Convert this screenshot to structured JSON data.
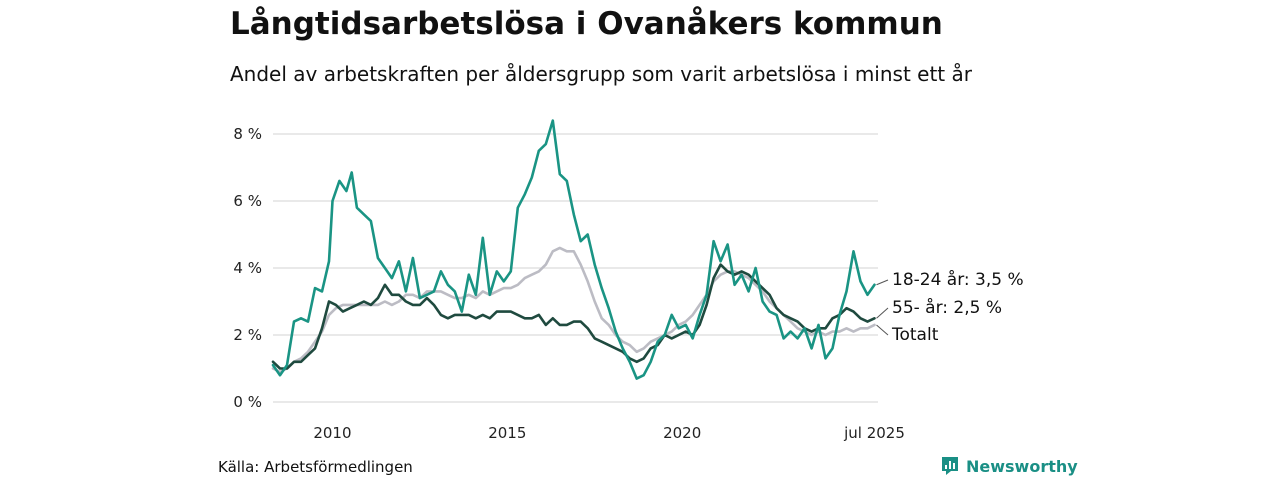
{
  "header": {
    "title": "Långtidsarbetslösa i Ovanåkers kommun",
    "subtitle": "Andel av arbetskraften per åldersgrupp som varit arbetslösa i minst ett år"
  },
  "footer": {
    "source": "Källa: Arbetsförmedlingen",
    "brand": "Newsworthy"
  },
  "colors": {
    "series_18_24": "#1a9484",
    "series_55": "#1f4a3f",
    "series_total": "#bcbcc4",
    "grid": "#dcdcdc",
    "brand": "#1a8f85"
  },
  "icons": {
    "brand_logo": "bar-chart-speech-bubble-icon"
  },
  "chart_data": {
    "type": "line",
    "xlim": [
      2008.3,
      2025.6
    ],
    "ylim": [
      0,
      8
    ],
    "y_ticks": [
      0,
      2,
      4,
      6,
      8
    ],
    "y_tick_labels": [
      "0 %",
      "2 %",
      "4 %",
      "6 %",
      "8 %"
    ],
    "x_ticks": [
      2010,
      2015,
      2020,
      2025.5
    ],
    "x_tick_labels": [
      "2010",
      "2015",
      "2020",
      "jul 2025"
    ],
    "grid": true,
    "legend": "direct labels at line ends (right)",
    "series": [
      {
        "name": "18-24 år",
        "end_label": "18-24 år: 3,5 %",
        "color": "#1a9484",
        "points": [
          [
            2008.3,
            1.1
          ],
          [
            2008.5,
            0.8
          ],
          [
            2008.7,
            1.1
          ],
          [
            2008.9,
            2.4
          ],
          [
            2009.1,
            2.5
          ],
          [
            2009.3,
            2.4
          ],
          [
            2009.5,
            3.4
          ],
          [
            2009.7,
            3.3
          ],
          [
            2009.9,
            4.2
          ],
          [
            2010.0,
            6.0
          ],
          [
            2010.2,
            6.6
          ],
          [
            2010.4,
            6.3
          ],
          [
            2010.55,
            6.85
          ],
          [
            2010.7,
            5.8
          ],
          [
            2010.9,
            5.6
          ],
          [
            2011.1,
            5.4
          ],
          [
            2011.3,
            4.3
          ],
          [
            2011.5,
            4.0
          ],
          [
            2011.7,
            3.7
          ],
          [
            2011.9,
            4.2
          ],
          [
            2012.1,
            3.3
          ],
          [
            2012.3,
            4.3
          ],
          [
            2012.5,
            3.1
          ],
          [
            2012.7,
            3.2
          ],
          [
            2012.9,
            3.3
          ],
          [
            2013.1,
            3.9
          ],
          [
            2013.3,
            3.5
          ],
          [
            2013.5,
            3.3
          ],
          [
            2013.7,
            2.7
          ],
          [
            2013.9,
            3.8
          ],
          [
            2014.1,
            3.2
          ],
          [
            2014.3,
            4.9
          ],
          [
            2014.5,
            3.2
          ],
          [
            2014.7,
            3.9
          ],
          [
            2014.9,
            3.6
          ],
          [
            2015.1,
            3.9
          ],
          [
            2015.3,
            5.8
          ],
          [
            2015.5,
            6.2
          ],
          [
            2015.7,
            6.7
          ],
          [
            2015.9,
            7.5
          ],
          [
            2016.1,
            7.7
          ],
          [
            2016.3,
            8.4
          ],
          [
            2016.5,
            6.8
          ],
          [
            2016.7,
            6.6
          ],
          [
            2016.9,
            5.6
          ],
          [
            2017.1,
            4.8
          ],
          [
            2017.3,
            5.0
          ],
          [
            2017.5,
            4.1
          ],
          [
            2017.7,
            3.4
          ],
          [
            2017.9,
            2.8
          ],
          [
            2018.1,
            2.1
          ],
          [
            2018.3,
            1.6
          ],
          [
            2018.5,
            1.2
          ],
          [
            2018.7,
            0.7
          ],
          [
            2018.9,
            0.8
          ],
          [
            2019.1,
            1.2
          ],
          [
            2019.3,
            1.8
          ],
          [
            2019.5,
            2.0
          ],
          [
            2019.7,
            2.6
          ],
          [
            2019.9,
            2.2
          ],
          [
            2020.1,
            2.3
          ],
          [
            2020.3,
            1.9
          ],
          [
            2020.5,
            2.6
          ],
          [
            2020.7,
            3.2
          ],
          [
            2020.9,
            4.8
          ],
          [
            2021.1,
            4.2
          ],
          [
            2021.3,
            4.7
          ],
          [
            2021.5,
            3.5
          ],
          [
            2021.7,
            3.8
          ],
          [
            2021.9,
            3.3
          ],
          [
            2022.1,
            4.0
          ],
          [
            2022.3,
            3.0
          ],
          [
            2022.5,
            2.7
          ],
          [
            2022.7,
            2.6
          ],
          [
            2022.9,
            1.9
          ],
          [
            2023.1,
            2.1
          ],
          [
            2023.3,
            1.9
          ],
          [
            2023.5,
            2.2
          ],
          [
            2023.7,
            1.6
          ],
          [
            2023.9,
            2.3
          ],
          [
            2024.1,
            1.3
          ],
          [
            2024.3,
            1.6
          ],
          [
            2024.5,
            2.6
          ],
          [
            2024.7,
            3.3
          ],
          [
            2024.9,
            4.5
          ],
          [
            2025.1,
            3.6
          ],
          [
            2025.3,
            3.2
          ],
          [
            2025.5,
            3.5
          ]
        ]
      },
      {
        "name": "55- år",
        "end_label": "55- år: 2,5 %",
        "color": "#1f4a3f",
        "points": [
          [
            2008.3,
            1.2
          ],
          [
            2008.5,
            1.0
          ],
          [
            2008.7,
            1.0
          ],
          [
            2008.9,
            1.2
          ],
          [
            2009.1,
            1.2
          ],
          [
            2009.3,
            1.4
          ],
          [
            2009.5,
            1.6
          ],
          [
            2009.7,
            2.2
          ],
          [
            2009.9,
            3.0
          ],
          [
            2010.1,
            2.9
          ],
          [
            2010.3,
            2.7
          ],
          [
            2010.5,
            2.8
          ],
          [
            2010.7,
            2.9
          ],
          [
            2010.9,
            3.0
          ],
          [
            2011.1,
            2.9
          ],
          [
            2011.3,
            3.1
          ],
          [
            2011.5,
            3.5
          ],
          [
            2011.7,
            3.2
          ],
          [
            2011.9,
            3.2
          ],
          [
            2012.1,
            3.0
          ],
          [
            2012.3,
            2.9
          ],
          [
            2012.5,
            2.9
          ],
          [
            2012.7,
            3.1
          ],
          [
            2012.9,
            2.9
          ],
          [
            2013.1,
            2.6
          ],
          [
            2013.3,
            2.5
          ],
          [
            2013.5,
            2.6
          ],
          [
            2013.7,
            2.6
          ],
          [
            2013.9,
            2.6
          ],
          [
            2014.1,
            2.5
          ],
          [
            2014.3,
            2.6
          ],
          [
            2014.5,
            2.5
          ],
          [
            2014.7,
            2.7
          ],
          [
            2014.9,
            2.7
          ],
          [
            2015.1,
            2.7
          ],
          [
            2015.3,
            2.6
          ],
          [
            2015.5,
            2.5
          ],
          [
            2015.7,
            2.5
          ],
          [
            2015.9,
            2.6
          ],
          [
            2016.1,
            2.3
          ],
          [
            2016.3,
            2.5
          ],
          [
            2016.5,
            2.3
          ],
          [
            2016.7,
            2.3
          ],
          [
            2016.9,
            2.4
          ],
          [
            2017.1,
            2.4
          ],
          [
            2017.3,
            2.2
          ],
          [
            2017.5,
            1.9
          ],
          [
            2017.7,
            1.8
          ],
          [
            2017.9,
            1.7
          ],
          [
            2018.1,
            1.6
          ],
          [
            2018.3,
            1.5
          ],
          [
            2018.5,
            1.3
          ],
          [
            2018.7,
            1.2
          ],
          [
            2018.9,
            1.3
          ],
          [
            2019.1,
            1.6
          ],
          [
            2019.3,
            1.7
          ],
          [
            2019.5,
            2.0
          ],
          [
            2019.7,
            1.9
          ],
          [
            2019.9,
            2.0
          ],
          [
            2020.1,
            2.1
          ],
          [
            2020.3,
            2.0
          ],
          [
            2020.5,
            2.3
          ],
          [
            2020.7,
            2.9
          ],
          [
            2020.9,
            3.7
          ],
          [
            2021.1,
            4.1
          ],
          [
            2021.3,
            3.9
          ],
          [
            2021.5,
            3.8
          ],
          [
            2021.7,
            3.9
          ],
          [
            2021.9,
            3.8
          ],
          [
            2022.1,
            3.6
          ],
          [
            2022.3,
            3.4
          ],
          [
            2022.5,
            3.2
          ],
          [
            2022.7,
            2.8
          ],
          [
            2022.9,
            2.6
          ],
          [
            2023.1,
            2.5
          ],
          [
            2023.3,
            2.4
          ],
          [
            2023.5,
            2.2
          ],
          [
            2023.7,
            2.1
          ],
          [
            2023.9,
            2.2
          ],
          [
            2024.1,
            2.2
          ],
          [
            2024.3,
            2.5
          ],
          [
            2024.5,
            2.6
          ],
          [
            2024.7,
            2.8
          ],
          [
            2024.9,
            2.7
          ],
          [
            2025.1,
            2.5
          ],
          [
            2025.3,
            2.4
          ],
          [
            2025.5,
            2.5
          ]
        ]
      },
      {
        "name": "Totalt",
        "end_label": "Totalt",
        "color": "#bcbcc4",
        "points": [
          [
            2008.3,
            1.0
          ],
          [
            2008.5,
            0.9
          ],
          [
            2008.7,
            1.0
          ],
          [
            2008.9,
            1.2
          ],
          [
            2009.1,
            1.3
          ],
          [
            2009.3,
            1.5
          ],
          [
            2009.5,
            1.8
          ],
          [
            2009.7,
            2.1
          ],
          [
            2009.9,
            2.6
          ],
          [
            2010.1,
            2.8
          ],
          [
            2010.3,
            2.9
          ],
          [
            2010.5,
            2.9
          ],
          [
            2010.7,
            2.9
          ],
          [
            2010.9,
            2.9
          ],
          [
            2011.1,
            2.9
          ],
          [
            2011.3,
            2.9
          ],
          [
            2011.5,
            3.0
          ],
          [
            2011.7,
            2.9
          ],
          [
            2011.9,
            3.0
          ],
          [
            2012.1,
            3.2
          ],
          [
            2012.3,
            3.2
          ],
          [
            2012.5,
            3.1
          ],
          [
            2012.7,
            3.3
          ],
          [
            2012.9,
            3.3
          ],
          [
            2013.1,
            3.3
          ],
          [
            2013.3,
            3.2
          ],
          [
            2013.5,
            3.1
          ],
          [
            2013.7,
            3.1
          ],
          [
            2013.9,
            3.2
          ],
          [
            2014.1,
            3.1
          ],
          [
            2014.3,
            3.3
          ],
          [
            2014.5,
            3.2
          ],
          [
            2014.7,
            3.3
          ],
          [
            2014.9,
            3.4
          ],
          [
            2015.1,
            3.4
          ],
          [
            2015.3,
            3.5
          ],
          [
            2015.5,
            3.7
          ],
          [
            2015.7,
            3.8
          ],
          [
            2015.9,
            3.9
          ],
          [
            2016.1,
            4.1
          ],
          [
            2016.3,
            4.5
          ],
          [
            2016.5,
            4.6
          ],
          [
            2016.7,
            4.5
          ],
          [
            2016.9,
            4.5
          ],
          [
            2017.1,
            4.1
          ],
          [
            2017.3,
            3.6
          ],
          [
            2017.5,
            3.0
          ],
          [
            2017.7,
            2.5
          ],
          [
            2017.9,
            2.3
          ],
          [
            2018.1,
            2.0
          ],
          [
            2018.3,
            1.8
          ],
          [
            2018.5,
            1.7
          ],
          [
            2018.7,
            1.5
          ],
          [
            2018.9,
            1.6
          ],
          [
            2019.1,
            1.8
          ],
          [
            2019.3,
            1.9
          ],
          [
            2019.5,
            2.0
          ],
          [
            2019.7,
            2.1
          ],
          [
            2019.9,
            2.3
          ],
          [
            2020.1,
            2.4
          ],
          [
            2020.3,
            2.6
          ],
          [
            2020.5,
            2.9
          ],
          [
            2020.7,
            3.2
          ],
          [
            2020.9,
            3.6
          ],
          [
            2021.1,
            3.8
          ],
          [
            2021.3,
            3.9
          ],
          [
            2021.5,
            3.9
          ],
          [
            2021.7,
            3.8
          ],
          [
            2021.9,
            3.7
          ],
          [
            2022.1,
            3.5
          ],
          [
            2022.3,
            3.3
          ],
          [
            2022.5,
            3.0
          ],
          [
            2022.7,
            2.8
          ],
          [
            2022.9,
            2.6
          ],
          [
            2023.1,
            2.4
          ],
          [
            2023.3,
            2.2
          ],
          [
            2023.5,
            2.1
          ],
          [
            2023.7,
            2.0
          ],
          [
            2023.9,
            2.1
          ],
          [
            2024.1,
            2.0
          ],
          [
            2024.3,
            2.1
          ],
          [
            2024.5,
            2.1
          ],
          [
            2024.7,
            2.2
          ],
          [
            2024.9,
            2.1
          ],
          [
            2025.1,
            2.2
          ],
          [
            2025.3,
            2.2
          ],
          [
            2025.5,
            2.3
          ]
        ]
      }
    ]
  }
}
